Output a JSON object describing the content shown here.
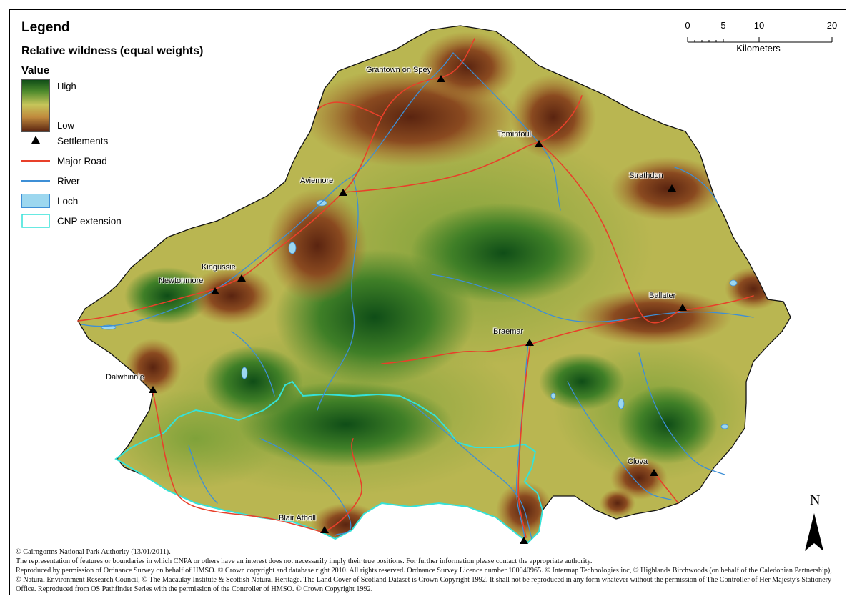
{
  "legend": {
    "title": "Legend",
    "subtitle": "Relative wildness (equal weights)",
    "value_heading": "Value",
    "ramp_high": "High",
    "ramp_low": "Low",
    "items": [
      {
        "label": "Settlements",
        "symbol": "triangle-icon",
        "color": "#000000"
      },
      {
        "label": "Major Road",
        "symbol": "road-line",
        "color": "#e8402a"
      },
      {
        "label": "River",
        "symbol": "river-line",
        "color": "#3d8fd6"
      },
      {
        "label": "Loch",
        "symbol": "loch-swatch",
        "color": "#9cd7ef"
      },
      {
        "label": "CNP extension",
        "symbol": "extension-outline",
        "color": "#35e2d8"
      }
    ]
  },
  "scale_bar": {
    "ticks": [
      "0",
      "5",
      "10",
      "20"
    ],
    "unit": "Kilometers"
  },
  "north_arrow": {
    "letter": "N"
  },
  "settlements": [
    {
      "name": "Grantown on Spey"
    },
    {
      "name": "Tomintoul"
    },
    {
      "name": "Aviemore"
    },
    {
      "name": "Strathdon"
    },
    {
      "name": "Kingussie"
    },
    {
      "name": "Newtonmore"
    },
    {
      "name": "Ballater"
    },
    {
      "name": "Braemar"
    },
    {
      "name": "Dalwhinnie"
    },
    {
      "name": "Clova"
    },
    {
      "name": "Blair Atholl"
    }
  ],
  "colors": {
    "wild_high": "#0f4d17",
    "wild_low": "#5a2410",
    "road": "#e8402a",
    "river": "#3d8fd6",
    "loch": "#9cd7ef",
    "extension": "#35e2d8"
  },
  "credits": [
    "© Cairngorms National Park Authority (13/01/2011).",
    "The representation of features or boundaries in which CNPA or others have an interest does not necessarily imply their true positions. For further information please contact the appropriate authority.",
    "Reproduced by permission of Ordnance Survey on behalf of HMSO. © Crown copyright and database right 2010. All rights reserved. Ordnance Survey Licence number 100040965. © Intermap Technologies inc, © Highlands Birchwoods (on behalf of the Caledonian Partnership), © Natural Environment Research Council, © The Macaulay Institute & Scottish Natural Heritage. The Land Cover of Scotland Dataset is Crown Copyright 1992. It shall not be reproduced in any form whatever without the permission of The Controller of Her Majesty's Stationery Office. Reproduced from OS Pathfinder Series with the permission of the Controller of HMSO. © Crown Copyright 1992."
  ]
}
